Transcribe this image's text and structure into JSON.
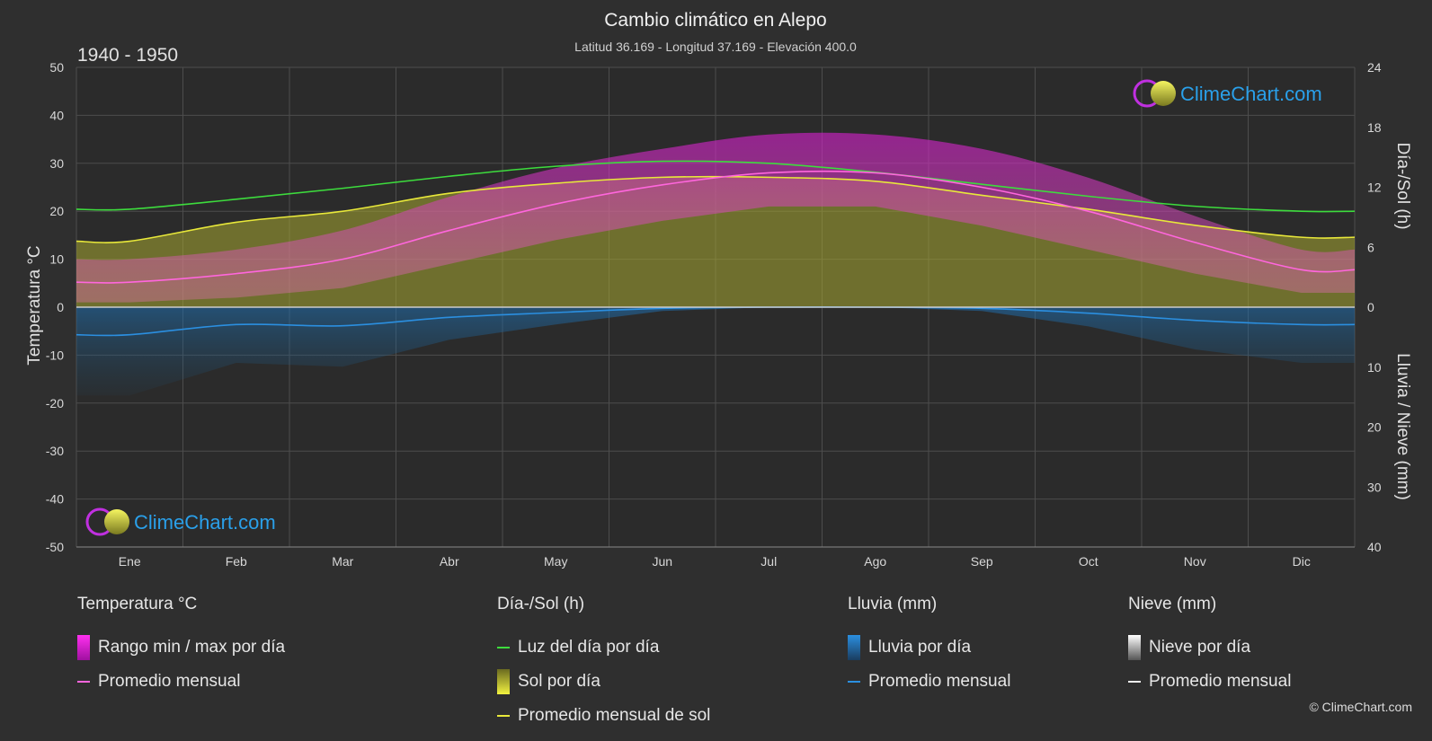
{
  "chart_data": {
    "type": "line",
    "title": "Cambio climático en Alepo",
    "subtitle": "Latitud 36.169 - Longitud 37.169 - Elevación 400.0",
    "period": "1940 - 1950",
    "categories": [
      "Ene",
      "Feb",
      "Mar",
      "Abr",
      "May",
      "Jun",
      "Jul",
      "Ago",
      "Sep",
      "Oct",
      "Nov",
      "Dic"
    ],
    "y_left": {
      "label": "Temperatura °C",
      "range": [
        -50,
        50
      ],
      "ticks": [
        "50",
        "40",
        "30",
        "20",
        "10",
        "0",
        "-10",
        "-20",
        "-30",
        "-40",
        "-50"
      ]
    },
    "y_right_top": {
      "label": "Día-/Sol (h)",
      "range": [
        0,
        24
      ],
      "ticks": [
        "24",
        "18",
        "12",
        "6",
        "0"
      ]
    },
    "y_right_bottom": {
      "label": "Lluvia / Nieve (mm)",
      "range": [
        0,
        40
      ],
      "ticks": [
        "0",
        "10",
        "20",
        "30",
        "40"
      ]
    },
    "grid": true,
    "series": [
      {
        "name": "Luz del día por día",
        "unit": "h",
        "color": "#3ddc3d",
        "values": [
          9.8,
          10.8,
          11.9,
          13.1,
          14.1,
          14.6,
          14.4,
          13.5,
          12.3,
          11.1,
          10.1,
          9.6
        ]
      },
      {
        "name": "Promedio mensual de sol",
        "unit": "h",
        "color": "#e8e83a",
        "values": [
          6.6,
          8.5,
          9.6,
          11.4,
          12.4,
          13.0,
          13.0,
          12.6,
          11.2,
          9.8,
          8.2,
          7.0
        ]
      },
      {
        "name": "Promedio mensual",
        "unit": "°C",
        "color": "#ff66dd",
        "values": [
          5.2,
          7.0,
          10.0,
          16.0,
          21.5,
          25.5,
          28.0,
          28.0,
          25.0,
          20.0,
          13.5,
          7.8
        ]
      },
      {
        "name": "Promedio mensual",
        "unit": "mm",
        "color": "#2b8fe0",
        "values": [
          4.6,
          2.9,
          3.1,
          1.7,
          0.9,
          0.2,
          0.0,
          0.0,
          0.2,
          1.0,
          2.2,
          2.9
        ]
      }
    ],
    "temp_range_max": [
      10,
      12,
      16,
      23,
      29,
      33,
      36,
      36,
      33,
      27,
      19,
      12
    ],
    "temp_range_min": [
      1,
      2,
      4,
      9,
      14,
      18,
      21,
      21,
      17,
      12,
      7,
      3
    ],
    "sun_color": "#a8a832",
    "range_color": "#d020c8",
    "rain_color": "#1f6fb0",
    "snow_color": "#bbbbbb"
  },
  "logo": {
    "text": "ClimeChart.com"
  },
  "legend": {
    "groups": [
      {
        "title": "Temperatura °C",
        "items": [
          {
            "label": "Rango min / max por día",
            "kind": "box",
            "color": "#d020c8"
          },
          {
            "label": "Promedio mensual",
            "kind": "line",
            "color": "#ff66dd"
          }
        ]
      },
      {
        "title": "Día-/Sol (h)",
        "items": [
          {
            "label": "Luz del día por día",
            "kind": "line",
            "color": "#3ddc3d"
          },
          {
            "label": "Sol por día",
            "kind": "box",
            "color": "#d8d840"
          },
          {
            "label": "Promedio mensual de sol",
            "kind": "line",
            "color": "#e8e83a"
          }
        ]
      },
      {
        "title": "Lluvia (mm)",
        "items": [
          {
            "label": "Lluvia por día",
            "kind": "box",
            "color": "#2b8fe0"
          },
          {
            "label": "Promedio mensual",
            "kind": "line",
            "color": "#2b8fe0"
          }
        ]
      },
      {
        "title": "Nieve (mm)",
        "items": [
          {
            "label": "Nieve por día",
            "kind": "box",
            "color": "#dddddd"
          },
          {
            "label": "Promedio mensual",
            "kind": "line",
            "color": "#eeeeee"
          }
        ]
      }
    ]
  },
  "copyright": "© ClimeChart.com"
}
